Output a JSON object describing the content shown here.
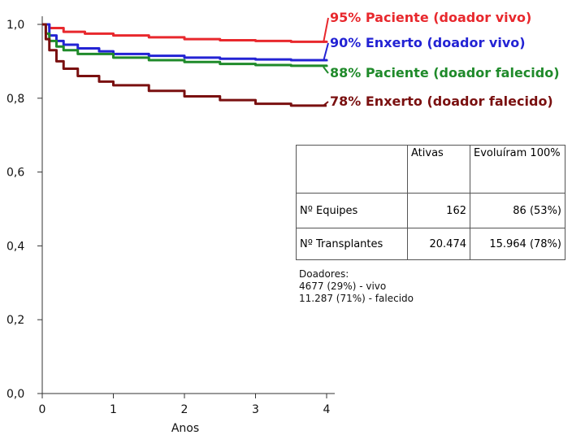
{
  "chart_data": {
    "type": "line",
    "xlabel": "Anos",
    "ylabel": "",
    "xlim": [
      0,
      4
    ],
    "ylim": [
      0,
      1
    ],
    "x_ticks": [
      "0",
      "1",
      "2",
      "3",
      "4"
    ],
    "y_ticks": [
      "0,0",
      "0,2",
      "0,4",
      "0,6",
      "0,8",
      "1,0"
    ],
    "x_tick_values": [
      0,
      1,
      2,
      3,
      4
    ],
    "y_tick_values": [
      0,
      0.2,
      0.4,
      0.6,
      0.8,
      1.0
    ],
    "grid": false,
    "legend_position": "right",
    "series": [
      {
        "name": "95% Paciente (doador vivo)",
        "color": "#e8282d",
        "x": [
          0,
          0.1,
          0.3,
          0.6,
          1.0,
          1.5,
          2.0,
          2.5,
          3.0,
          3.5,
          4.0
        ],
        "y": [
          1.0,
          0.99,
          0.98,
          0.975,
          0.97,
          0.965,
          0.96,
          0.957,
          0.955,
          0.953,
          0.95
        ]
      },
      {
        "name": "90% Enxerto (doador vivo)",
        "color": "#2323d4",
        "x": [
          0,
          0.1,
          0.2,
          0.3,
          0.5,
          0.8,
          1.0,
          1.5,
          2.0,
          2.5,
          3.0,
          3.5,
          4.0
        ],
        "y": [
          1.0,
          0.97,
          0.955,
          0.945,
          0.935,
          0.927,
          0.92,
          0.915,
          0.91,
          0.907,
          0.905,
          0.903,
          0.9
        ]
      },
      {
        "name": "88% Paciente (doador falecido)",
        "color": "#1f8a2a",
        "x": [
          0,
          0.05,
          0.1,
          0.2,
          0.3,
          0.5,
          1.0,
          1.5,
          2.0,
          2.5,
          3.0,
          3.5,
          4.0
        ],
        "y": [
          1.0,
          0.975,
          0.955,
          0.94,
          0.93,
          0.92,
          0.91,
          0.903,
          0.898,
          0.893,
          0.89,
          0.888,
          0.885
        ]
      },
      {
        "name": "78% Enxerto (doador falecido)",
        "color": "#7a1010",
        "x": [
          0,
          0.05,
          0.1,
          0.2,
          0.3,
          0.5,
          0.8,
          1.0,
          1.5,
          2.0,
          2.5,
          3.0,
          3.5,
          4.0
        ],
        "y": [
          1.0,
          0.96,
          0.93,
          0.9,
          0.88,
          0.86,
          0.845,
          0.835,
          0.82,
          0.805,
          0.795,
          0.785,
          0.78,
          0.78
        ]
      }
    ],
    "table": {
      "headers": [
        "",
        "Ativas",
        "Evoluíram 100%"
      ],
      "rows": [
        [
          "Nº Equipes",
          "162",
          "86 (53%)"
        ],
        [
          "Nº Transplantes",
          "20.474",
          "15.964 (78%)"
        ]
      ]
    },
    "annotation": {
      "title": "Doadores:",
      "lines": [
        "4677 (29%) - vivo",
        "11.287 (71%) - falecido"
      ]
    }
  }
}
